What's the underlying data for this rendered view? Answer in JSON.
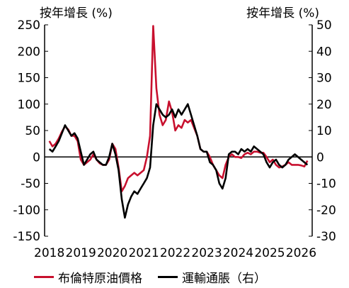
{
  "chart_data": {
    "type": "line",
    "left_axis_unit": "按年增長 (%)",
    "right_axis_unit": "按年增長 (%)",
    "x_tick_labels": [
      "2018",
      "2019",
      "2020",
      "2021",
      "2022",
      "2023",
      "2024",
      "2025",
      "2026"
    ],
    "y_left": {
      "lim": [
        -150,
        250
      ],
      "ticks": [
        250,
        200,
        150,
        100,
        50,
        0,
        -50,
        -100,
        -150
      ]
    },
    "y_right": {
      "lim": [
        -30,
        50
      ],
      "ticks": [
        50,
        40,
        30,
        20,
        10,
        0,
        -10,
        -20,
        -30
      ]
    },
    "grid": false,
    "legend_position": "bottom",
    "series": [
      {
        "name": "布倫特原油價格",
        "axis": "left",
        "color": "#c8102e",
        "points": [
          [
            2018.0,
            30
          ],
          [
            2018.1,
            20
          ],
          [
            2018.2,
            25
          ],
          [
            2018.3,
            35
          ],
          [
            2018.4,
            48
          ],
          [
            2018.5,
            58
          ],
          [
            2018.6,
            52
          ],
          [
            2018.7,
            40
          ],
          [
            2018.8,
            40
          ],
          [
            2018.9,
            30
          ],
          [
            2019.0,
            -5
          ],
          [
            2019.1,
            -15
          ],
          [
            2019.2,
            -10
          ],
          [
            2019.3,
            -5
          ],
          [
            2019.4,
            5
          ],
          [
            2019.5,
            -5
          ],
          [
            2019.6,
            -12
          ],
          [
            2019.7,
            -15
          ],
          [
            2019.8,
            -15
          ],
          [
            2019.9,
            -5
          ],
          [
            2020.0,
            25
          ],
          [
            2020.1,
            15
          ],
          [
            2020.2,
            -20
          ],
          [
            2020.3,
            -65
          ],
          [
            2020.4,
            -55
          ],
          [
            2020.5,
            -40
          ],
          [
            2020.6,
            -35
          ],
          [
            2020.7,
            -30
          ],
          [
            2020.8,
            -35
          ],
          [
            2020.9,
            -30
          ],
          [
            2021.0,
            -25
          ],
          [
            2021.1,
            0
          ],
          [
            2021.2,
            40
          ],
          [
            2021.3,
            248
          ],
          [
            2021.4,
            130
          ],
          [
            2021.5,
            80
          ],
          [
            2021.6,
            60
          ],
          [
            2021.7,
            70
          ],
          [
            2021.8,
            105
          ],
          [
            2021.9,
            85
          ],
          [
            2022.0,
            50
          ],
          [
            2022.1,
            60
          ],
          [
            2022.2,
            55
          ],
          [
            2022.3,
            70
          ],
          [
            2022.4,
            65
          ],
          [
            2022.5,
            70
          ],
          [
            2022.6,
            55
          ],
          [
            2022.7,
            40
          ],
          [
            2022.8,
            15
          ],
          [
            2022.9,
            10
          ],
          [
            2023.0,
            10
          ],
          [
            2023.1,
            0
          ],
          [
            2023.2,
            -15
          ],
          [
            2023.3,
            -25
          ],
          [
            2023.4,
            -35
          ],
          [
            2023.5,
            -40
          ],
          [
            2023.6,
            -15
          ],
          [
            2023.7,
            0
          ],
          [
            2023.8,
            5
          ],
          [
            2023.9,
            0
          ],
          [
            2024.0,
            0
          ],
          [
            2024.1,
            -2
          ],
          [
            2024.2,
            5
          ],
          [
            2024.3,
            8
          ],
          [
            2024.4,
            5
          ],
          [
            2024.5,
            10
          ],
          [
            2024.6,
            10
          ],
          [
            2024.7,
            8
          ],
          [
            2024.8,
            8
          ],
          [
            2024.9,
            0
          ],
          [
            2025.0,
            -10
          ],
          [
            2025.1,
            -5
          ],
          [
            2025.2,
            -15
          ],
          [
            2025.3,
            -20
          ],
          [
            2025.4,
            -18
          ],
          [
            2025.5,
            -15
          ],
          [
            2025.6,
            -10
          ],
          [
            2025.7,
            -15
          ],
          [
            2025.8,
            -15
          ],
          [
            2025.9,
            -15
          ],
          [
            2026.0,
            -16
          ],
          [
            2026.1,
            -18
          ],
          [
            2026.2,
            -7
          ]
        ]
      },
      {
        "name": "運輸通脹（右）",
        "axis": "right",
        "color": "#000000",
        "points": [
          [
            2018.0,
            3
          ],
          [
            2018.1,
            2
          ],
          [
            2018.2,
            4
          ],
          [
            2018.3,
            6
          ],
          [
            2018.4,
            9
          ],
          [
            2018.5,
            12
          ],
          [
            2018.6,
            10
          ],
          [
            2018.7,
            8
          ],
          [
            2018.8,
            9
          ],
          [
            2018.9,
            7
          ],
          [
            2019.0,
            2
          ],
          [
            2019.1,
            -3
          ],
          [
            2019.2,
            -1
          ],
          [
            2019.3,
            1
          ],
          [
            2019.4,
            2
          ],
          [
            2019.5,
            -1
          ],
          [
            2019.6,
            -2
          ],
          [
            2019.7,
            -3
          ],
          [
            2019.8,
            -3
          ],
          [
            2019.9,
            0
          ],
          [
            2020.0,
            5
          ],
          [
            2020.1,
            1
          ],
          [
            2020.2,
            -5
          ],
          [
            2020.3,
            -16
          ],
          [
            2020.4,
            -23
          ],
          [
            2020.5,
            -18
          ],
          [
            2020.6,
            -15
          ],
          [
            2020.7,
            -13
          ],
          [
            2020.8,
            -14
          ],
          [
            2020.9,
            -12
          ],
          [
            2021.0,
            -10
          ],
          [
            2021.1,
            -8
          ],
          [
            2021.2,
            -4
          ],
          [
            2021.3,
            12
          ],
          [
            2021.4,
            20
          ],
          [
            2021.5,
            18
          ],
          [
            2021.6,
            16
          ],
          [
            2021.7,
            15
          ],
          [
            2021.8,
            16
          ],
          [
            2021.9,
            18
          ],
          [
            2022.0,
            15
          ],
          [
            2022.1,
            18
          ],
          [
            2022.2,
            16
          ],
          [
            2022.3,
            18
          ],
          [
            2022.4,
            20
          ],
          [
            2022.5,
            16
          ],
          [
            2022.6,
            12
          ],
          [
            2022.7,
            8
          ],
          [
            2022.8,
            3
          ],
          [
            2022.9,
            2
          ],
          [
            2023.0,
            2
          ],
          [
            2023.1,
            -2
          ],
          [
            2023.2,
            -3
          ],
          [
            2023.3,
            -5
          ],
          [
            2023.4,
            -10
          ],
          [
            2023.5,
            -12
          ],
          [
            2023.6,
            -8
          ],
          [
            2023.7,
            1
          ],
          [
            2023.8,
            2
          ],
          [
            2023.9,
            2
          ],
          [
            2024.0,
            1
          ],
          [
            2024.1,
            3
          ],
          [
            2024.2,
            2
          ],
          [
            2024.3,
            3
          ],
          [
            2024.4,
            2
          ],
          [
            2024.5,
            4
          ],
          [
            2024.6,
            3
          ],
          [
            2024.7,
            2
          ],
          [
            2024.8,
            1
          ],
          [
            2024.9,
            -2
          ],
          [
            2025.0,
            -4
          ],
          [
            2025.1,
            -2
          ],
          [
            2025.2,
            -1
          ],
          [
            2025.3,
            -3
          ],
          [
            2025.4,
            -4
          ],
          [
            2025.5,
            -3
          ],
          [
            2025.6,
            -1
          ],
          [
            2025.7,
            0
          ],
          [
            2025.8,
            1
          ],
          [
            2025.9,
            0
          ],
          [
            2026.0,
            -1
          ],
          [
            2026.1,
            -2
          ],
          [
            2026.2,
            -3
          ]
        ]
      }
    ]
  }
}
